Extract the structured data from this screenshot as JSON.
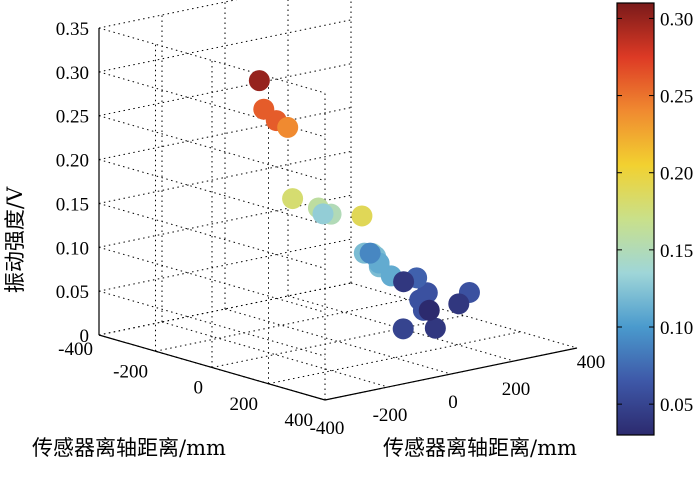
{
  "chart_data": {
    "type": "scatter",
    "title": "",
    "xlabel": "传感器离轴距离/mm",
    "ylabel": "传感器离轴距离/mm",
    "zlabel": "振动强度/V",
    "xlim": [
      -400,
      400
    ],
    "ylim": [
      -400,
      400
    ],
    "zlim": [
      0,
      0.35
    ],
    "x_ticks": [
      "-400",
      "-200",
      "0",
      "200",
      "400"
    ],
    "y_ticks": [
      "-400",
      "-200",
      "0",
      "200",
      "400"
    ],
    "z_ticks": [
      "0",
      "0.05",
      "0.10",
      "0.15",
      "0.20",
      "0.25",
      "0.30",
      "0.35"
    ],
    "colorbar": {
      "min": 0.03,
      "max": 0.31,
      "ticks": [
        "0.05",
        "0.10",
        "0.15",
        "0.20",
        "0.25",
        "0.30"
      ],
      "colormap": [
        "#2c2a6e",
        "#3e58a8",
        "#4a9acd",
        "#9fd6d8",
        "#c9e08a",
        "#f2d130",
        "#f08a30",
        "#dd3a25",
        "#7a1a1a"
      ]
    },
    "grid": true,
    "points": [
      {
        "x": -100,
        "y": -160,
        "z": 0.3
      },
      {
        "x": -140,
        "y": -110,
        "z": 0.26
      },
      {
        "x": -40,
        "y": -160,
        "z": 0.26
      },
      {
        "x": -100,
        "y": -70,
        "z": 0.24
      },
      {
        "x": 40,
        "y": -180,
        "z": 0.18
      },
      {
        "x": 20,
        "y": -80,
        "z": 0.16
      },
      {
        "x": 20,
        "y": -40,
        "z": 0.15
      },
      {
        "x": 330,
        "y": -220,
        "z": 0.19
      },
      {
        "x": 100,
        "y": 200,
        "z": 0.03
      },
      {
        "x": -120,
        "y": 60,
        "z": 0.13
      },
      {
        "x": -20,
        "y": 120,
        "z": 0.09
      },
      {
        "x": 160,
        "y": -60,
        "z": 0.12
      },
      {
        "x": 200,
        "y": -60,
        "z": 0.12
      },
      {
        "x": 190,
        "y": -40,
        "z": 0.11
      },
      {
        "x": 300,
        "y": -160,
        "z": 0.14
      },
      {
        "x": 280,
        "y": -120,
        "z": 0.12
      },
      {
        "x": 300,
        "y": -100,
        "z": 0.11
      },
      {
        "x": 100,
        "y": 160,
        "z": 0.07
      },
      {
        "x": 160,
        "y": 140,
        "z": 0.06
      },
      {
        "x": 200,
        "y": 80,
        "z": 0.06
      },
      {
        "x": 260,
        "y": 40,
        "z": 0.06
      },
      {
        "x": 280,
        "y": 20,
        "z": 0.06
      },
      {
        "x": 320,
        "y": -80,
        "z": 0.05
      },
      {
        "x": 300,
        "y": 40,
        "z": 0.04
      },
      {
        "x": 220,
        "y": 220,
        "z": 0.06
      },
      {
        "x": 160,
        "y": 240,
        "z": 0.04
      },
      {
        "x": -80,
        "y": 280,
        "z": 0.04
      }
    ]
  }
}
